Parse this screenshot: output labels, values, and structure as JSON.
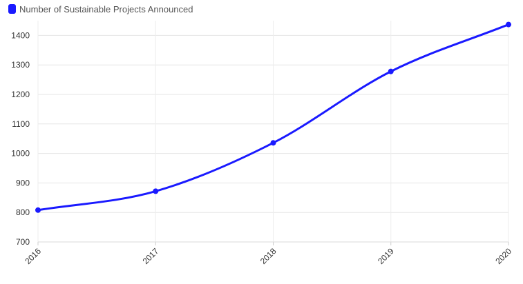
{
  "chart_data": {
    "type": "line",
    "title": "",
    "xlabel": "",
    "ylabel": "",
    "categories": [
      "2016",
      "2017",
      "2018",
      "2019",
      "2020"
    ],
    "series": [
      {
        "name": "Number of Sustainable Projects Announced",
        "values": [
          808,
          872,
          1036,
          1278,
          1437
        ],
        "color": "#1a1aff"
      }
    ],
    "yticks": [
      700,
      800,
      900,
      1000,
      1100,
      1200,
      1300,
      1400
    ],
    "ylim": [
      700,
      1450
    ],
    "grid": true,
    "legend_position": "top-left",
    "smooth": true
  }
}
